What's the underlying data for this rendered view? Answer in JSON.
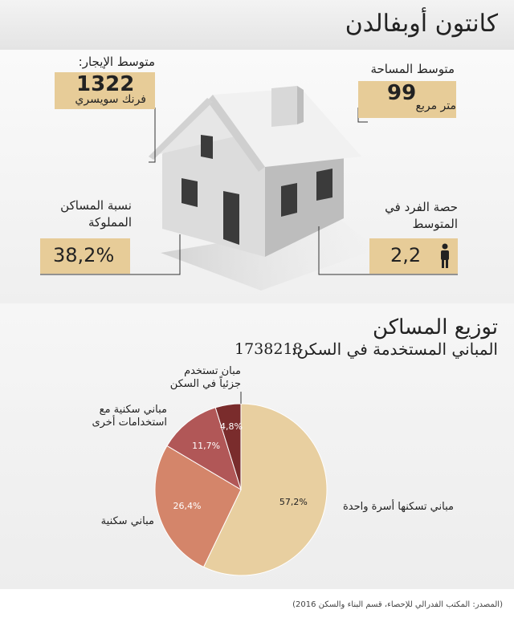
{
  "title": "كانتون أوبفالدن",
  "stats": {
    "rent_label": "متوسط الإيجار:",
    "rent_value": "1322",
    "rent_unit": "فرنك سويسري",
    "area_label": "متوسط المساحة",
    "area_value": "99",
    "area_unit": "متر مربع",
    "owned_label_line1": "نسبة المساكن",
    "owned_label_line2": "المملوكة",
    "owned_value": "38,2%",
    "persons_label_line1": "حصة الفرد في",
    "persons_label_line2": "المتوسط",
    "persons_value": "2,2"
  },
  "icons": [
    "house-illustration",
    "person-icon"
  ],
  "colors": {
    "box": "#e7cc98",
    "slice1": "#e8cfa0",
    "slice2": "#d4856a",
    "slice3": "#b15757",
    "slice4": "#7a2c2c"
  },
  "distribution": {
    "heading": "توزيع المساكن",
    "subheading": "المباني المستخدمة في السكن:",
    "total": "1738218"
  },
  "chart_data": {
    "type": "pie",
    "title": "توزيع المساكن",
    "slices": [
      {
        "label": "مباني تسكنها أسرة واحدة",
        "value": 57.2,
        "value_label": "57,2%",
        "color": "#e8cfa0"
      },
      {
        "label": "مباني سكنية",
        "value": 26.4,
        "value_label": "26,4%",
        "color": "#d4856a"
      },
      {
        "label_line1": "مباني سكنية مع",
        "label_line2": "استخدامات أخرى",
        "value": 11.7,
        "value_label": "11,7%",
        "color": "#b15757"
      },
      {
        "label_line1": "مبان تستخدم",
        "label_line2": "جزئياً في السكن",
        "value": 4.8,
        "value_label": "4,8%",
        "color": "#7a2c2c"
      }
    ]
  },
  "source": "(المصدر: المكتب الفدرالي للإحصاء، قسم البناء والسكن 2016)"
}
